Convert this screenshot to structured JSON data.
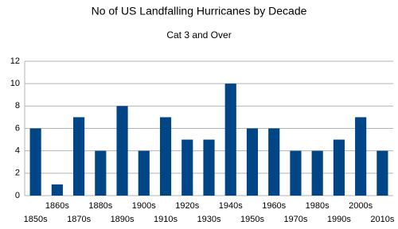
{
  "chart_data": {
    "type": "bar",
    "title": "No of US Landfalling Hurricanes by Decade",
    "subtitle": "Cat 3  and Over",
    "categories": [
      "1850s",
      "1860s",
      "1870s",
      "1880s",
      "1890s",
      "1900s",
      "1910s",
      "1920s",
      "1930s",
      "1940s",
      "1950s",
      "1960s",
      "1970s",
      "1980s",
      "1990s",
      "2000s",
      "2010s"
    ],
    "values": [
      6,
      1,
      7,
      4,
      8,
      4,
      7,
      5,
      5,
      10,
      6,
      6,
      4,
      4,
      5,
      7,
      4
    ],
    "color": "#004586",
    "ylim": [
      0,
      12
    ],
    "yticks": [
      0,
      2,
      4,
      6,
      8,
      10,
      12
    ],
    "grid": true
  }
}
